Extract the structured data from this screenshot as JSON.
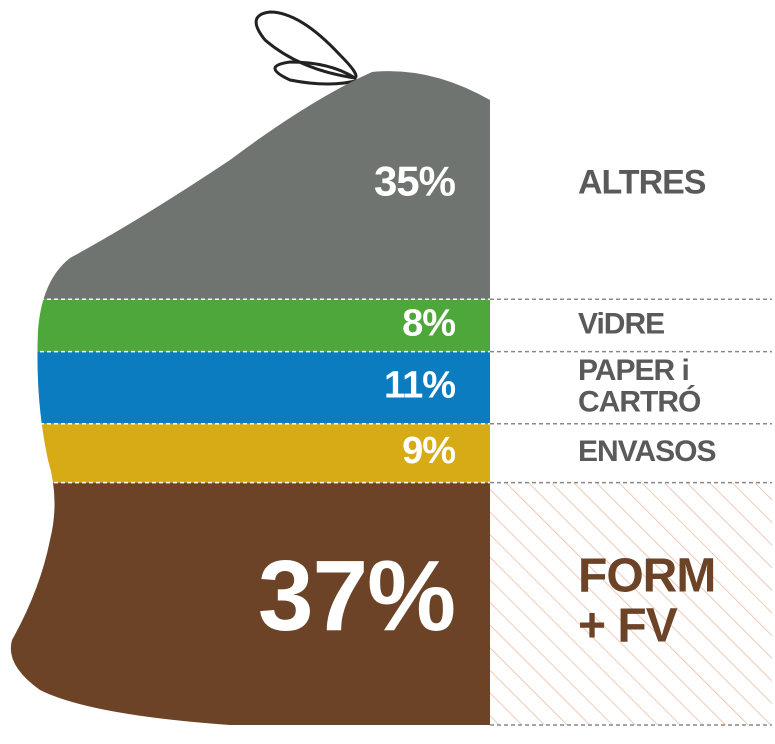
{
  "chart_data": {
    "type": "stacked-bag",
    "categories": [
      [
        "ALTRES"
      ],
      [
        "ViDRE"
      ],
      [
        "PAPER i",
        "CARTRÓ"
      ],
      [
        "ENVASOS"
      ],
      [
        "FORM",
        "+ FV"
      ]
    ],
    "values": [
      35,
      8,
      11,
      9,
      37
    ],
    "value_labels": [
      "35%",
      "8%",
      "11%",
      "9%",
      "37%"
    ],
    "colors": [
      "#6f7471",
      "#4ea73a",
      "#0b7cc0",
      "#d6ab16",
      "#6c4327"
    ],
    "label_colors": [
      "#5a5a5a",
      "#5a5a5a",
      "#5a5a5a",
      "#5a5a5a",
      "#6c4327"
    ]
  }
}
